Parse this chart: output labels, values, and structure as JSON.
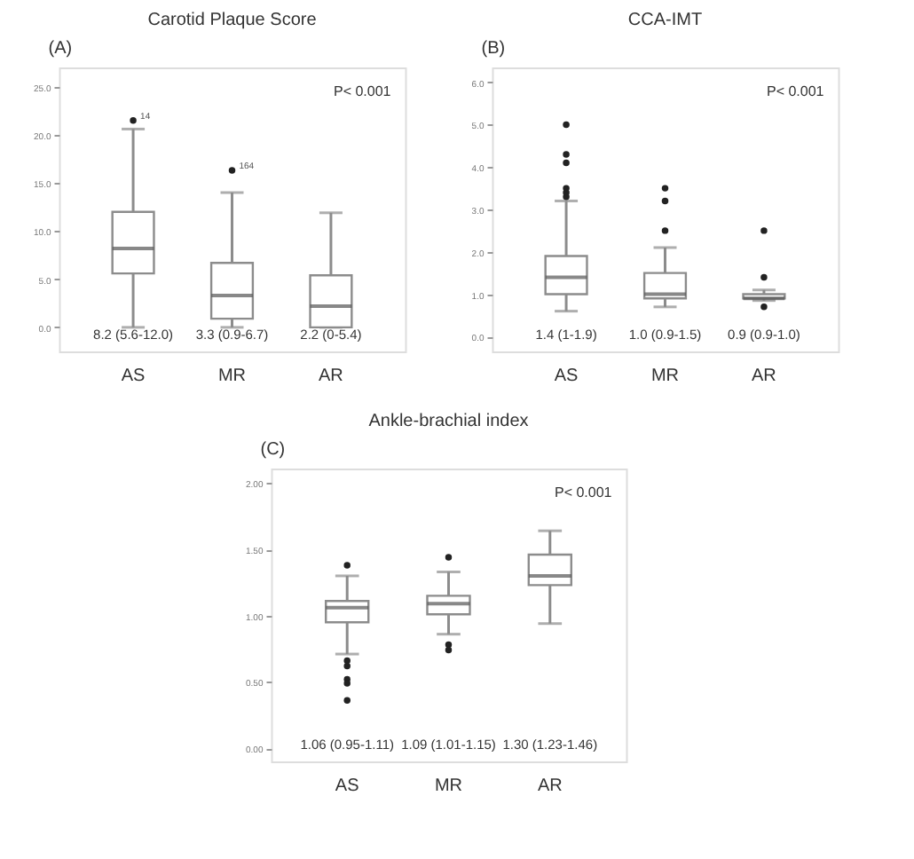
{
  "chart_data": [
    {
      "type": "box",
      "title": "Carotid Plaque Score",
      "categories": [
        "AS",
        "MR",
        "AR"
      ],
      "boxes": [
        {
          "low": 0,
          "q1": 5.6,
          "median": 8.2,
          "q3": 12.0,
          "high": 20.6,
          "outliers": [
            21.5
          ]
        },
        {
          "low": 0,
          "q1": 0.9,
          "median": 3.3,
          "q3": 6.7,
          "high": 14.0,
          "outliers": [
            16.3
          ]
        },
        {
          "low": 0,
          "q1": 0,
          "median": 2.2,
          "q3": 5.4,
          "high": 11.9
        }
      ],
      "ylim": [
        -2.5,
        27
      ],
      "yticks": [
        {
          "value": 0,
          "label": "0.0"
        },
        {
          "value": 5,
          "label": "5.0"
        },
        {
          "value": 10,
          "label": "10.0"
        },
        {
          "value": 15,
          "label": "15.0"
        },
        {
          "value": 20,
          "label": "20.0"
        },
        {
          "value": 25,
          "label": "25.0"
        }
      ],
      "grid": false,
      "annotations": [
        "(A)",
        "P< 0.001",
        "8.2 (5.6-12.0)",
        "3.3 (0.9-6.7)",
        "2.2 (0-5.4)",
        "14",
        "164"
      ]
    },
    {
      "type": "box",
      "title": "CCA-IMT",
      "categories": [
        "AS",
        "MR",
        "AR"
      ],
      "boxes": [
        {
          "low": 0.6,
          "q1": 1.0,
          "median": 1.4,
          "q3": 1.9,
          "high": 3.2,
          "outliers": [
            3.3,
            3.4,
            3.5,
            4.1,
            4.3,
            5.0
          ]
        },
        {
          "low": 0.7,
          "q1": 0.9,
          "median": 1.0,
          "q3": 1.5,
          "high": 2.1,
          "outliers": [
            2.5,
            3.2,
            3.5
          ]
        },
        {
          "low": 0.85,
          "q1": 0.9,
          "median": 0.9,
          "q3": 1.0,
          "high": 1.1,
          "outliers": [
            0.7,
            1.4,
            2.5
          ]
        }
      ],
      "ylim": [
        -0.35,
        6.35
      ],
      "yticks": [
        {
          "value": 0,
          "label": "0.0"
        },
        {
          "value": 1,
          "label": "1.0"
        },
        {
          "value": 2,
          "label": "2.0"
        },
        {
          "value": 3,
          "label": "3.0"
        },
        {
          "value": 4,
          "label": "4.0"
        },
        {
          "value": 5,
          "label": "5.0"
        },
        {
          "value": 6,
          "label": "6.0"
        }
      ],
      "grid": false,
      "annotations": [
        "(B)",
        "P< 0.001",
        "1.4 (1-1.9)",
        "1.0 (0.9-1.5)",
        "0.9 (0.9-1.0)"
      ]
    },
    {
      "type": "box",
      "title": "Ankle-brachial index",
      "categories": [
        "AS",
        "MR",
        "AR"
      ],
      "boxes": [
        {
          "low": 0.71,
          "q1": 0.95,
          "median": 1.06,
          "q3": 1.11,
          "high": 1.3,
          "outliers": [
            1.38,
            0.66,
            0.62,
            0.52,
            0.49,
            0.36
          ]
        },
        {
          "low": 0.86,
          "q1": 1.01,
          "median": 1.09,
          "q3": 1.15,
          "high": 1.33,
          "outliers": [
            1.44,
            0.78,
            0.74
          ]
        },
        {
          "low": 0.94,
          "q1": 1.23,
          "median": 1.3,
          "q3": 1.46,
          "high": 1.64
        }
      ],
      "ylim": [
        -0.1,
        2.11
      ],
      "yticks": [
        {
          "value": 0,
          "label": "0.00"
        },
        {
          "value": 0.5,
          "label": "0.50"
        },
        {
          "value": 1,
          "label": "1.00"
        },
        {
          "value": 1.5,
          "label": "1.50"
        },
        {
          "value": 2,
          "label": "2.00"
        }
      ],
      "grid": false,
      "annotations": [
        "(C)",
        "P< 0.001",
        "1.06 (0.95-1.11)",
        "1.09 (1.01-1.15)",
        "1.30 (1.23-1.46)"
      ]
    }
  ]
}
